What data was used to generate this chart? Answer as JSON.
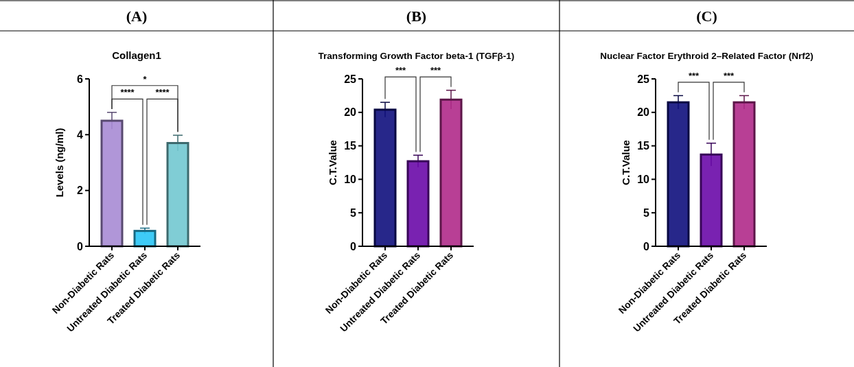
{
  "chart_data": [
    {
      "type": "bar",
      "title": "(A)",
      "subtitle": "Collagen1",
      "ylabel": "Levels (ng/ml)",
      "categories": [
        "Non-Diabetic Rats",
        "Untreated Diabetic Rats",
        "Treated Diabetic Rats"
      ],
      "values": [
        4.5,
        0.55,
        3.7
      ],
      "errors": [
        0.3,
        0.1,
        0.28
      ],
      "colors": [
        "#a78bd4",
        "#29c5f6",
        "#72c8d0"
      ],
      "ylim": [
        0,
        6
      ],
      "yticks": [
        0,
        2,
        4,
        6
      ],
      "annotations": [
        "****",
        "****",
        "*"
      ]
    },
    {
      "type": "bar",
      "title": "(B)",
      "subtitle": "Transforming Growth Factor beta-1 (TGFβ-1)",
      "ylabel": "C.T.Value",
      "categories": [
        "Non-Diabetic Rats",
        "Untreated Diabetic Rats",
        "Treated Diabetic Rats"
      ],
      "values": [
        20.4,
        12.7,
        21.9
      ],
      "errors": [
        1.1,
        0.9,
        1.4
      ],
      "colors": [
        "#0f0f7d",
        "#6a0aa8",
        "#b02a8a"
      ],
      "ylim": [
        0,
        25
      ],
      "yticks": [
        0,
        5,
        10,
        15,
        20,
        25
      ],
      "annotations": [
        "***",
        "***"
      ]
    },
    {
      "type": "bar",
      "title": "(C)",
      "subtitle": "Nuclear Factor Erythroid 2–Related Factor (Nrf2)",
      "ylabel": "C.T.Value",
      "categories": [
        "Non-Diabetic Rats",
        "Untreated Diabetic Rats",
        "Treated Diabetic Rats"
      ],
      "values": [
        21.5,
        13.7,
        21.5
      ],
      "errors": [
        1.0,
        1.7,
        1.0
      ],
      "colors": [
        "#0f0f7d",
        "#6a0aa8",
        "#b02a8a"
      ],
      "ylim": [
        0,
        25
      ],
      "yticks": [
        0,
        5,
        10,
        15,
        20,
        25
      ],
      "annotations": [
        "***",
        "***"
      ]
    }
  ]
}
